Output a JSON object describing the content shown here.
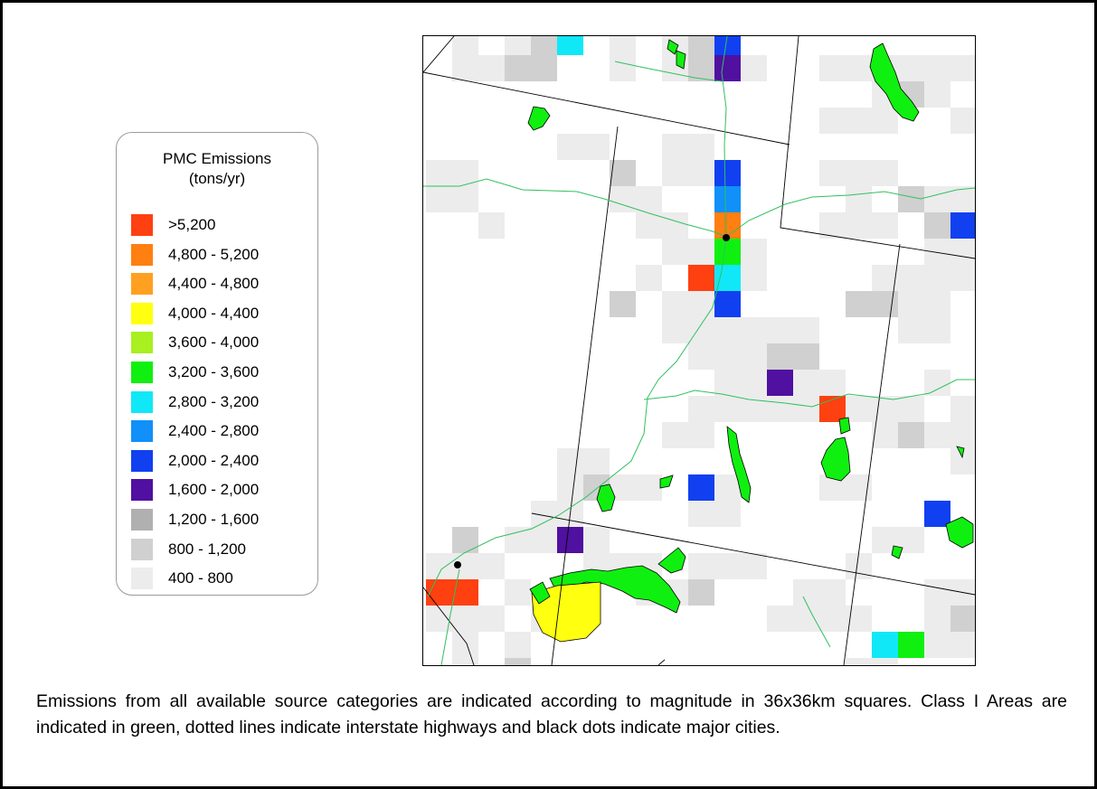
{
  "legend": {
    "title_line1": "PMC Emissions",
    "title_line2": "(tons/yr)",
    "items": [
      {
        "label": ">5,200",
        "color": "#ff4010"
      },
      {
        "label": "4,800 - 5,200",
        "color": "#ff7f10"
      },
      {
        "label": "4,400 - 4,800",
        "color": "#ffa020"
      },
      {
        "label": "4,000 - 4,400",
        "color": "#ffff10"
      },
      {
        "label": "3,600 - 4,000",
        "color": "#a8f020"
      },
      {
        "label": "3,200 - 3,600",
        "color": "#10f010"
      },
      {
        "label": "2,800 - 3,200",
        "color": "#10e8f8"
      },
      {
        "label": "2,400 - 2,800",
        "color": "#1090f8"
      },
      {
        "label": "2,000 - 2,400",
        "color": "#1040f0"
      },
      {
        "label": "1,600 - 2,000",
        "color": "#5010a0"
      },
      {
        "label": "1,200 - 1,600",
        "color": "#b0b0b0"
      },
      {
        "label": "800 - 1,200",
        "color": "#d0d0d0"
      },
      {
        "label": "400 - 800",
        "color": "#ececec"
      }
    ]
  },
  "map": {
    "class_i_area_color": "#10f010",
    "highway_color": "#30c060",
    "city_color": "#000000"
  },
  "caption": "Emissions from all available source categories are indicated according to magnitude in 36x36km squares.  Class I Areas are indicated in green, dotted lines indicate interstate highways and black dots indicate major cities."
}
